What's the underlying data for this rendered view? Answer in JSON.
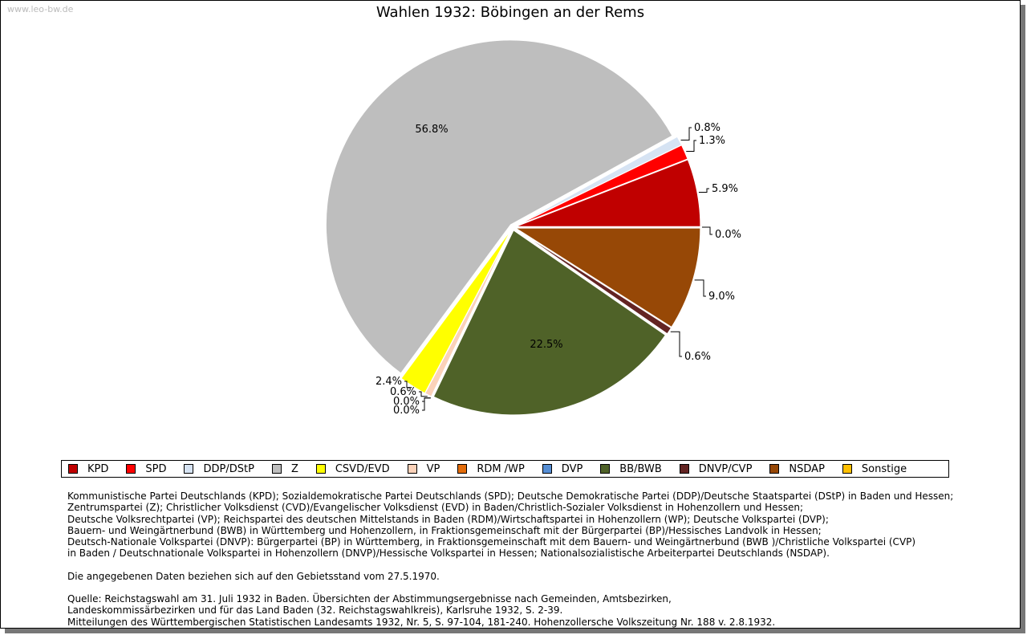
{
  "watermark": "www.leo-bw.de",
  "chart_data": {
    "type": "pie",
    "title": "Wahlen 1932: Böbingen an der Rems",
    "legend_position": "bottom",
    "slices": [
      {
        "label": "KPD",
        "value": 5.9,
        "text": "5.9%",
        "color": "#c00000"
      },
      {
        "label": "SPD",
        "value": 1.3,
        "text": "1.3%",
        "color": "#ff0000"
      },
      {
        "label": "DDP/DStP",
        "value": 0.8,
        "text": "0.8%",
        "color": "#d6e3f3"
      },
      {
        "label": "Z",
        "value": 56.8,
        "text": "56.8%",
        "color": "#bebebe"
      },
      {
        "label": "CSVD/EVD",
        "value": 2.4,
        "text": "2.4%",
        "color": "#ffff00"
      },
      {
        "label": "VP",
        "value": 0.6,
        "text": "0.6%",
        "color": "#fbd2b9"
      },
      {
        "label": "RDM /WP",
        "value": 0.0,
        "text": "0.0%",
        "color": "#e36c0a"
      },
      {
        "label": "DVP",
        "value": 0.0,
        "text": "0.0%",
        "color": "#558ed5"
      },
      {
        "label": "BB/BWB",
        "value": 22.5,
        "text": "22.5%",
        "color": "#4f6228"
      },
      {
        "label": "DNVP/CVP",
        "value": 0.6,
        "text": "0.6%",
        "color": "#632423"
      },
      {
        "label": "NSDAP",
        "value": 9.0,
        "text": "9.0%",
        "color": "#974806"
      },
      {
        "label": "Sonstige",
        "value": 0.0,
        "text": "0.0%",
        "color": "#ffc000"
      }
    ]
  },
  "notes": [
    "Kommunistische Partei Deutschlands (KPD); Sozialdemokratische Partei Deutschlands (SPD); Deutsche Demokratische Partei (DDP)/Deutsche Staatspartei (DStP) in Baden und Hessen;",
    "Zentrumspartei (Z); Christlicher Volksdienst (CVD)/Evangelischer Volksdienst (EVD) in Baden/Christlich-Sozialer Volksdienst in Hohenzollern und Hessen;",
    "Deutsche Volksrechtpartei (VP); Reichspartei des deutschen Mittelstands in Baden (RDM)/Wirtschaftspartei in Hohenzollern (WP); Deutsche Volkspartei (DVP);",
    "Bauern- und Weingärtnerbund (BWB) in Württemberg und Hohenzollern, in Fraktionsgemeinschaft mit der Bürgerpartei (BP)/Hessisches Landvolk in Hessen;",
    "Deutsch-Nationale Volkspartei (DNVP): Bürgerpartei (BP) in Württemberg, in Fraktionsgemeinschaft mit dem Bauern- und Weingärtnerbund (BWB )/Christliche Volkspartei (CVP)",
    "in Baden / Deutschnationale Volkspartei in Hohenzollern (DNVP)/Hessische Volkspartei in Hessen; Nationalsozialistische Arbeiterpartei Deutschlands (NSDAP)."
  ],
  "gebietsstand": "Die angegebenen Daten beziehen sich auf den Gebietsstand vom 27.5.1970.",
  "source": [
    "Quelle: Reichstagswahl am 31. Juli 1932 in Baden. Übersichten der Abstimmungsergebnisse nach Gemeinden, Amtsbezirken,",
    "Landeskommissärbezirken und für das Land Baden (32. Reichstagswahlkreis), Karlsruhe 1932, S. 2-39.",
    "Mitteilungen des Württembergischen Statistischen Landesamts 1932, Nr. 5, S. 97-104, 181-240. Hohenzollersche Volkszeitung Nr. 188 v. 2.8.1932."
  ]
}
